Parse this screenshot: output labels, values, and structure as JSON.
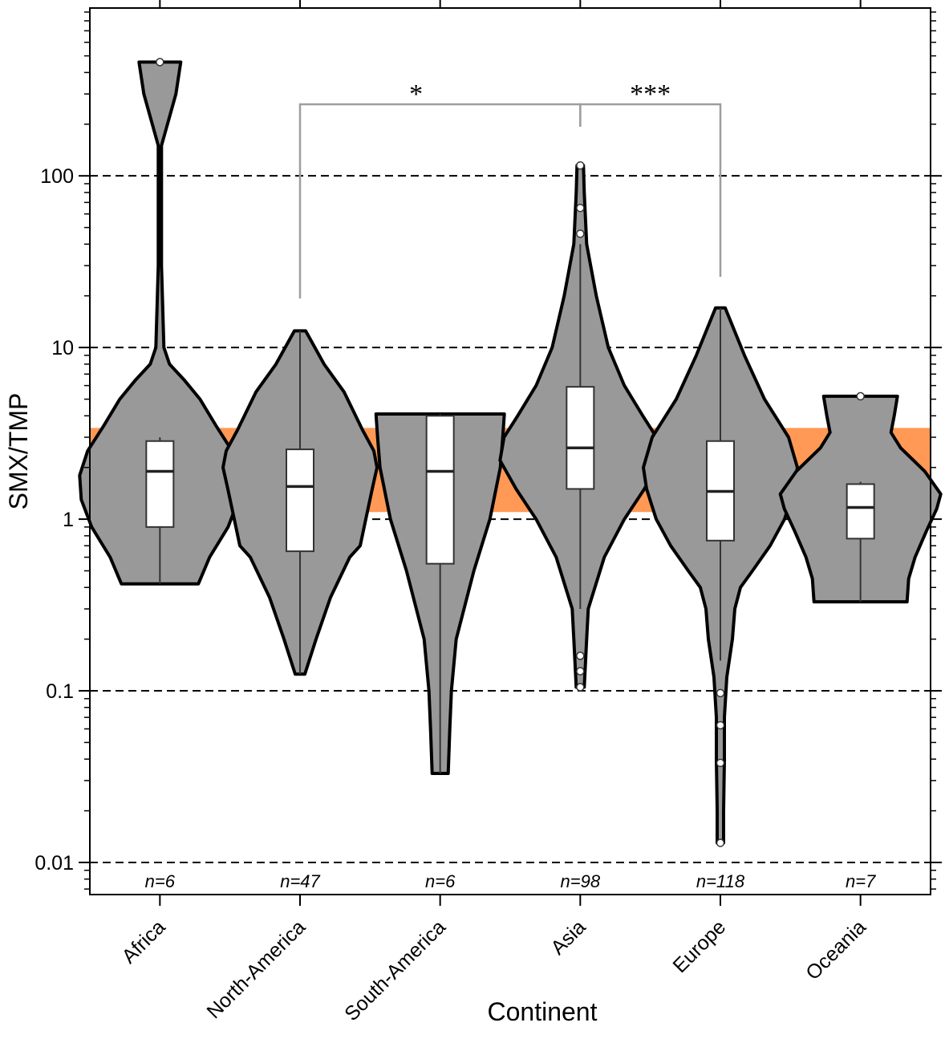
{
  "chart_data": {
    "type": "violin",
    "xlabel": "Continent",
    "ylabel": "SMX/TMP",
    "yscale": "log",
    "ylim": [
      0.0065,
      950
    ],
    "yticks": [
      {
        "value": 0.01,
        "label": "0.01"
      },
      {
        "value": 0.1,
        "label": "0.1"
      },
      {
        "value": 1,
        "label": "1"
      },
      {
        "value": 10,
        "label": "10"
      },
      {
        "value": 100,
        "label": "100"
      }
    ],
    "grid": "horizontal dashed at major ticks",
    "reference_band": {
      "low": 1.1,
      "high": 3.4,
      "color": "#ff9955"
    },
    "colors": {
      "violin": "#999999",
      "box": "#ffffff",
      "outline": "#000000",
      "bracket": "#9e9e9e"
    },
    "groups": [
      {
        "name": "Africa",
        "n_label": "n=6",
        "min": 0.42,
        "max": 460,
        "q1": 0.9,
        "median": 1.9,
        "q3": 2.85,
        "whisker_low": 0.42,
        "whisker_high": 3.0,
        "outliers": [
          460
        ],
        "profile": [
          [
            0.42,
            0.48
          ],
          [
            0.6,
            0.62
          ],
          [
            0.9,
            0.85
          ],
          [
            1.3,
            0.98
          ],
          [
            1.8,
            1.0
          ],
          [
            2.5,
            0.9
          ],
          [
            3.5,
            0.7
          ],
          [
            5,
            0.5
          ],
          [
            6.5,
            0.3
          ],
          [
            8,
            0.12
          ],
          [
            10,
            0.05
          ],
          [
            30,
            0.02
          ],
          [
            150,
            0.02
          ],
          [
            300,
            0.2
          ],
          [
            460,
            0.26
          ]
        ]
      },
      {
        "name": "North-America",
        "n_label": "n=47",
        "min": 0.125,
        "max": 12.5,
        "q1": 0.65,
        "median": 1.55,
        "q3": 2.55,
        "whisker_low": 0.125,
        "whisker_high": 12.5,
        "outliers": [],
        "profile": [
          [
            0.125,
            0.06
          ],
          [
            0.2,
            0.2
          ],
          [
            0.35,
            0.38
          ],
          [
            0.6,
            0.62
          ],
          [
            0.7,
            0.75
          ],
          [
            1.0,
            0.82
          ],
          [
            1.5,
            0.9
          ],
          [
            2.0,
            0.96
          ],
          [
            2.5,
            0.92
          ],
          [
            3.3,
            0.78
          ],
          [
            5.5,
            0.55
          ],
          [
            8,
            0.3
          ],
          [
            12.5,
            0.07
          ]
        ]
      },
      {
        "name": "South-America",
        "n_label": "n=6",
        "min": 0.033,
        "max": 4.1,
        "q1": 0.55,
        "median": 1.9,
        "q3": 4.0,
        "whisker_low": 0.033,
        "whisker_high": 4.1,
        "outliers": [],
        "profile": [
          [
            0.033,
            0.1
          ],
          [
            0.06,
            0.12
          ],
          [
            0.1,
            0.14
          ],
          [
            0.2,
            0.2
          ],
          [
            0.5,
            0.42
          ],
          [
            1.0,
            0.62
          ],
          [
            2.0,
            0.75
          ],
          [
            3.0,
            0.78
          ],
          [
            4.1,
            0.8
          ]
        ]
      },
      {
        "name": "Asia",
        "n_label": "n=98",
        "min": 0.105,
        "max": 115,
        "q1": 1.5,
        "median": 2.6,
        "q3": 5.9,
        "whisker_low": 0.3,
        "whisker_high": 40,
        "outliers": [
          0.105,
          0.13,
          0.16,
          46,
          65,
          115
        ],
        "profile": [
          [
            0.105,
            0.05
          ],
          [
            0.13,
            0.06
          ],
          [
            0.2,
            0.08
          ],
          [
            0.3,
            0.1
          ],
          [
            0.6,
            0.3
          ],
          [
            1.0,
            0.55
          ],
          [
            1.5,
            0.8
          ],
          [
            2.2,
            1.0
          ],
          [
            3.0,
            0.95
          ],
          [
            4.0,
            0.78
          ],
          [
            6.0,
            0.55
          ],
          [
            10,
            0.35
          ],
          [
            20,
            0.2
          ],
          [
            40,
            0.08
          ],
          [
            80,
            0.05
          ],
          [
            115,
            0.04
          ]
        ]
      },
      {
        "name": "Europe",
        "n_label": "n=118",
        "min": 0.013,
        "max": 17,
        "q1": 0.75,
        "median": 1.45,
        "q3": 2.85,
        "whisker_low": 0.15,
        "whisker_high": 17,
        "outliers": [
          0.013,
          0.038,
          0.063,
          0.097
        ],
        "profile": [
          [
            0.013,
            0.04
          ],
          [
            0.02,
            0.04
          ],
          [
            0.04,
            0.05
          ],
          [
            0.07,
            0.05
          ],
          [
            0.12,
            0.08
          ],
          [
            0.2,
            0.15
          ],
          [
            0.3,
            0.18
          ],
          [
            0.4,
            0.25
          ],
          [
            0.5,
            0.4
          ],
          [
            0.7,
            0.62
          ],
          [
            1.0,
            0.8
          ],
          [
            1.5,
            0.92
          ],
          [
            2.0,
            0.96
          ],
          [
            3.0,
            0.85
          ],
          [
            5.0,
            0.55
          ],
          [
            9.0,
            0.3
          ],
          [
            17,
            0.06
          ]
        ]
      },
      {
        "name": "Oceania",
        "n_label": "n=7",
        "min": 0.33,
        "max": 5.2,
        "q1": 0.77,
        "median": 1.17,
        "q3": 1.6,
        "whisker_low": 0.33,
        "whisker_high": 1.65,
        "outliers": [
          5.2
        ],
        "profile": [
          [
            0.33,
            0.58
          ],
          [
            0.45,
            0.6
          ],
          [
            0.6,
            0.68
          ],
          [
            0.85,
            0.82
          ],
          [
            1.15,
            0.95
          ],
          [
            1.4,
            1.0
          ],
          [
            1.9,
            0.8
          ],
          [
            2.6,
            0.5
          ],
          [
            3.2,
            0.38
          ],
          [
            4.0,
            0.42
          ],
          [
            5.2,
            0.46
          ]
        ]
      }
    ],
    "comparisons": [
      {
        "from": "North-America",
        "to": "Asia",
        "label": "*"
      },
      {
        "from": "Asia",
        "to": "Europe",
        "label": "***"
      }
    ]
  }
}
